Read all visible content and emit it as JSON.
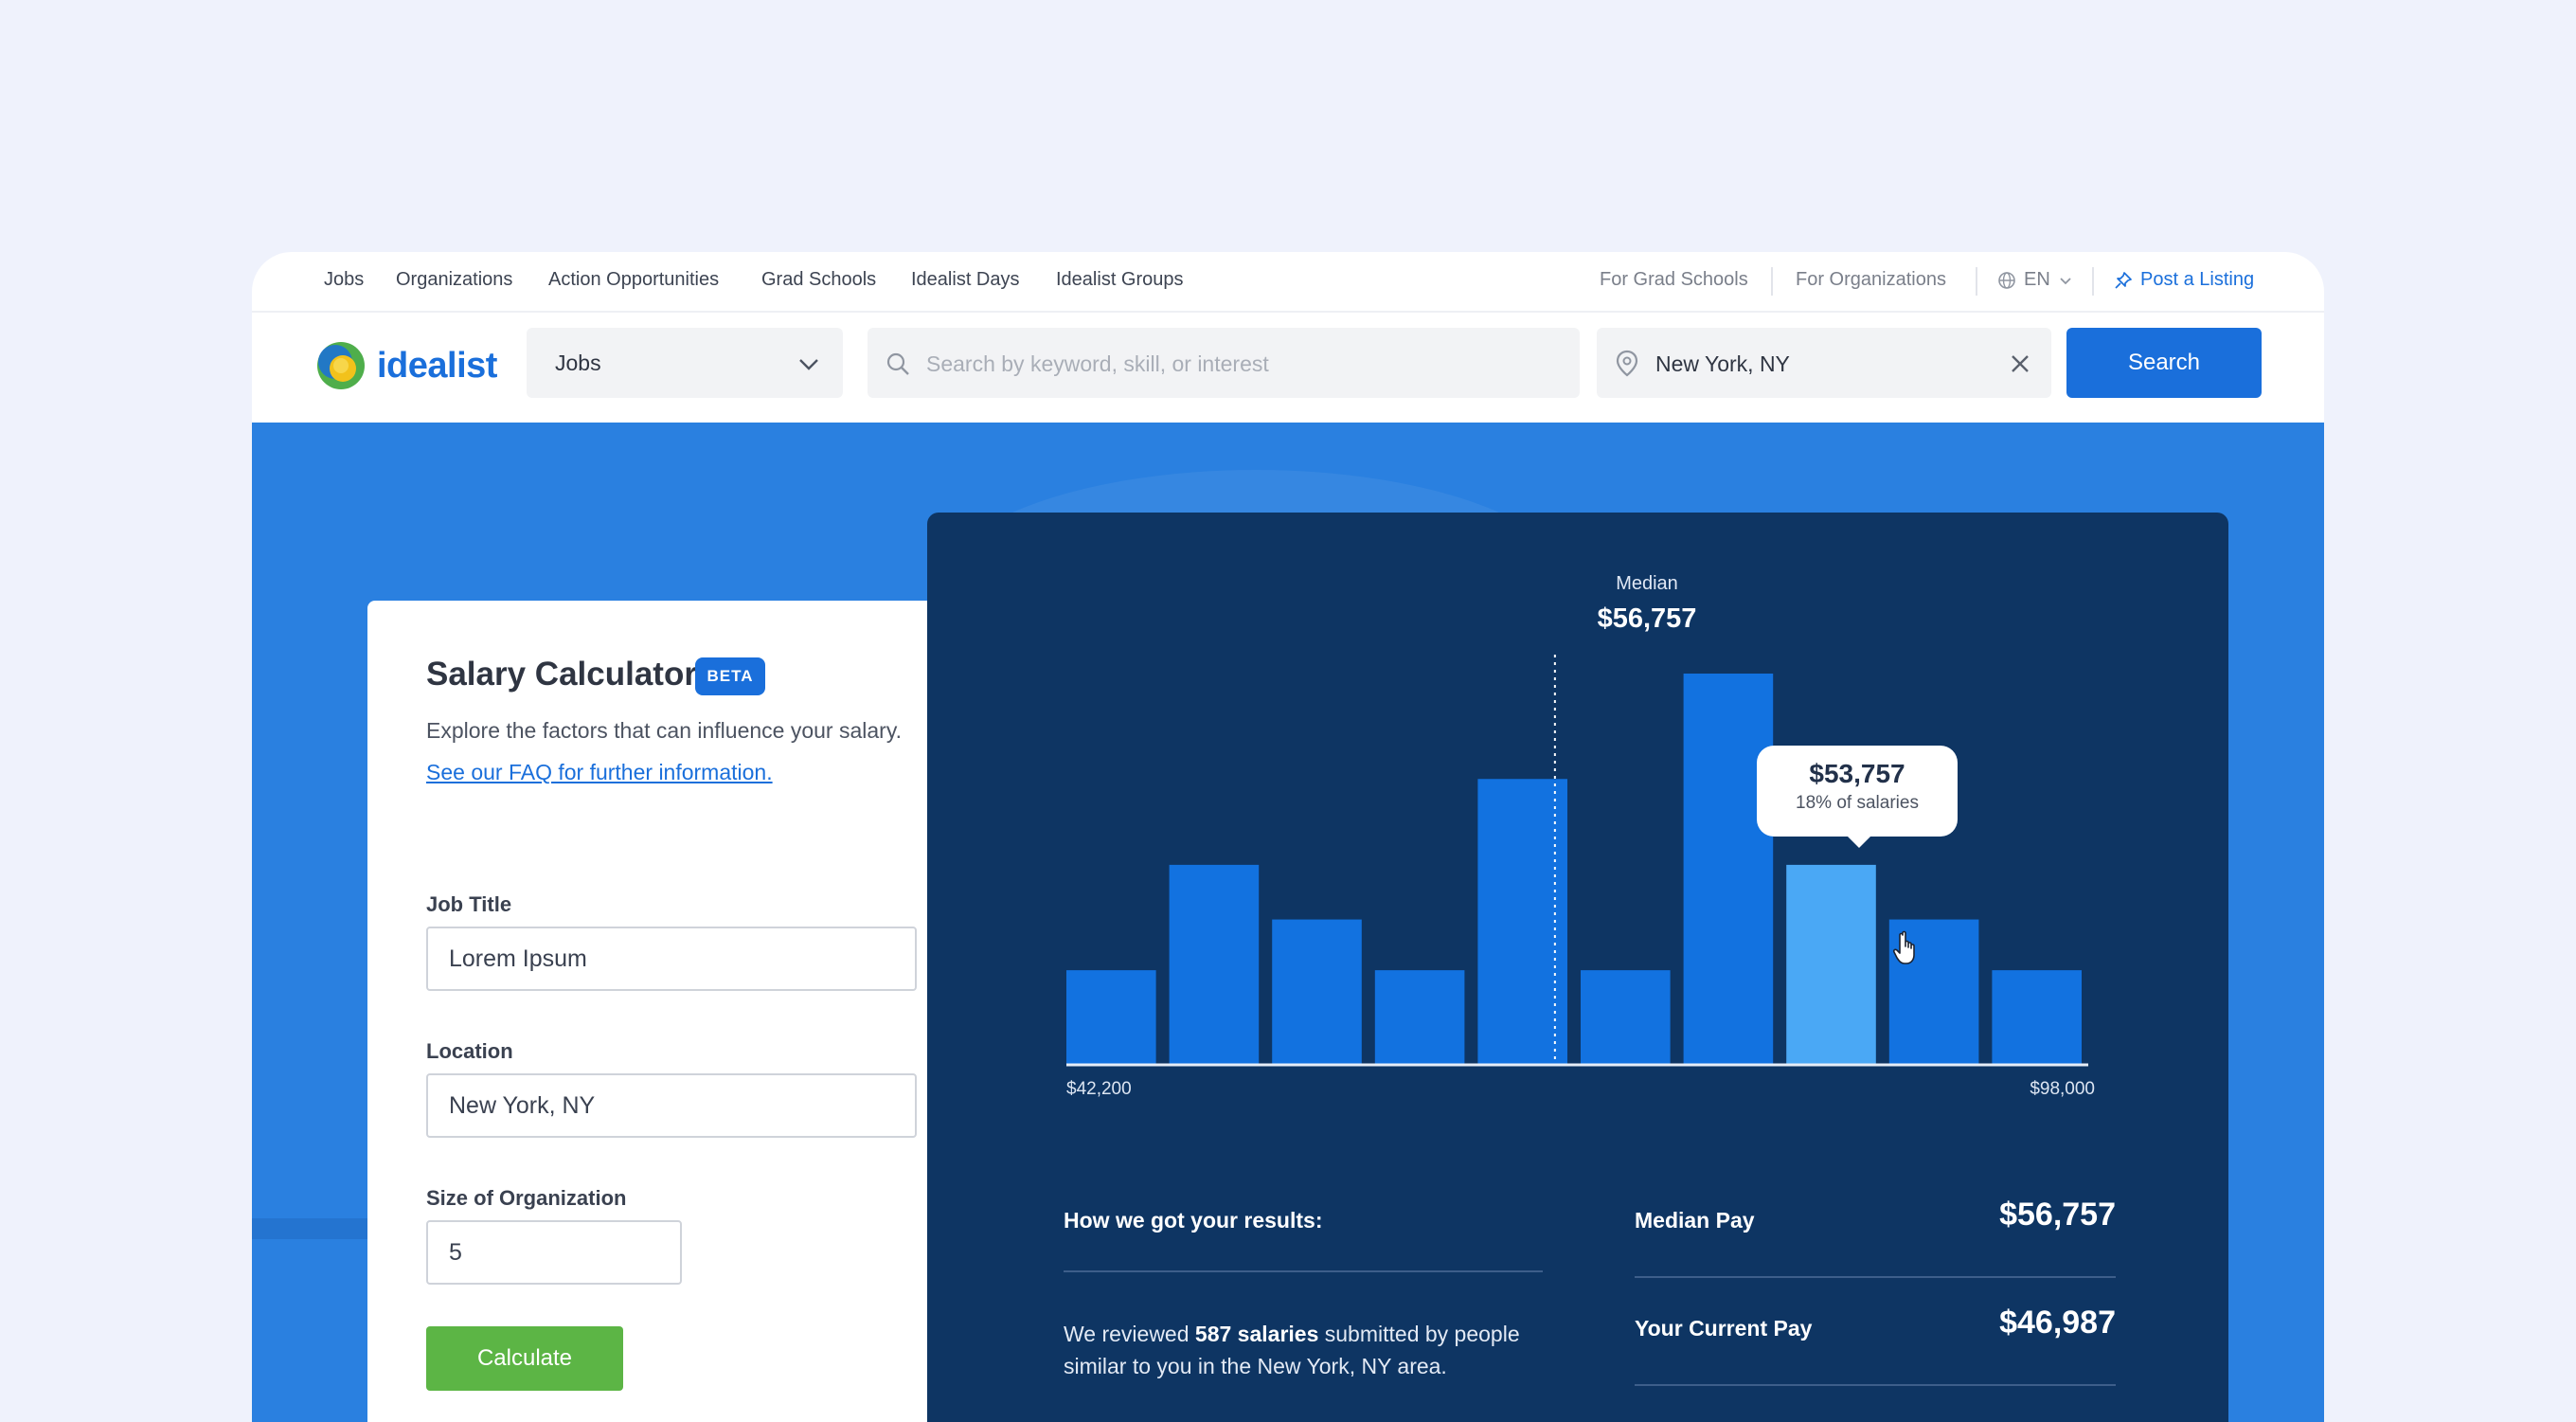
{
  "topnav": {
    "items": [
      "Jobs",
      "Organizations",
      "Action Opportunities",
      "Grad Schools",
      "Idealist Days",
      "Idealist Groups"
    ],
    "for_grad_schools": "For Grad Schools",
    "for_organizations": "For Organizations",
    "language": "EN",
    "post_listing": "Post a Listing"
  },
  "header": {
    "logo_text": "idealist",
    "category_select": "Jobs",
    "search_placeholder": "Search by keyword, skill, or interest",
    "location_value": "New York, NY",
    "search_button": "Search"
  },
  "calculator": {
    "title": "Salary Calculator",
    "badge": "BETA",
    "description": "Explore the factors that can influence your salary.",
    "faq_link": "See our FAQ for further information.",
    "job_title_label": "Job Title",
    "job_title_value": "Lorem Ipsum",
    "location_label": "Location",
    "location_value": "New York, NY",
    "org_size_label": "Size of Organization",
    "org_size_value": "5",
    "calculate_button": "Calculate"
  },
  "chart_data": {
    "type": "bar",
    "title": "",
    "xlabel": "",
    "ylabel": "",
    "x_range_labels": [
      "$42,200",
      "$98,000"
    ],
    "values": [
      0.24,
      0.51,
      0.37,
      0.24,
      0.73,
      0.24,
      1.0,
      0.51,
      0.37,
      0.24
    ],
    "highlighted_index": 7,
    "median_label": "Median",
    "median_value": "$56,757",
    "median_position": 0.475,
    "tooltip": {
      "value": "$53,757",
      "percent": "18% of salaries"
    },
    "colors": {
      "bar": "#1272e0",
      "highlight": "#4aa8f5",
      "background": "#0e3563"
    }
  },
  "results": {
    "how_title": "How we got your results:",
    "how_prefix": "We reviewed ",
    "how_count": "587 salaries",
    "how_suffix": " submitted by people similar to you in the New York, NY area.",
    "stats": [
      {
        "label": "Median Pay",
        "value": "$56,757"
      },
      {
        "label": "Your Current Pay",
        "value": "$46,987"
      }
    ]
  }
}
